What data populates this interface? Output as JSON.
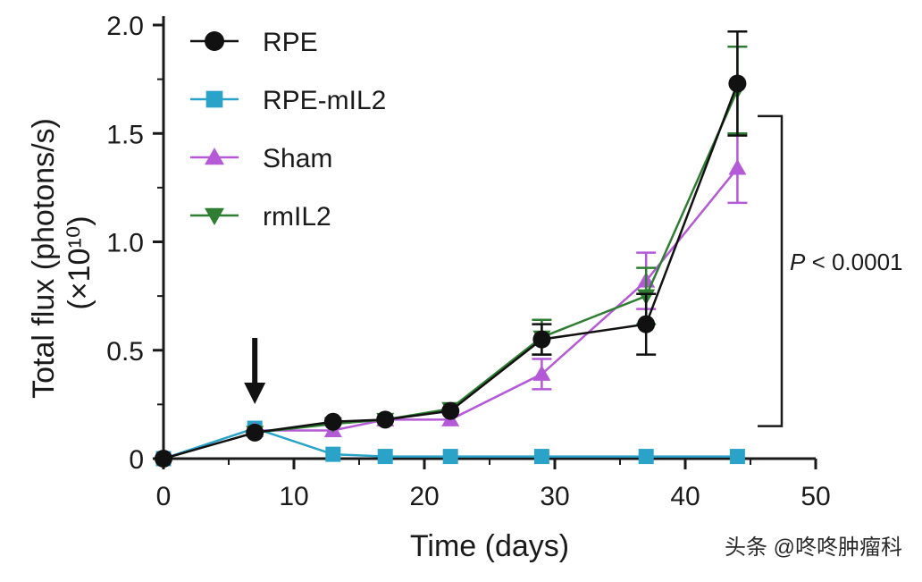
{
  "chart_data": {
    "type": "line",
    "title": "",
    "xlabel": "Time (days)",
    "ylabel_line1": "Total flux (photons/s)",
    "ylabel_line2": "(×10¹⁰)",
    "xlim": [
      0,
      50
    ],
    "ylim": [
      0,
      2.0
    ],
    "x_ticks": [
      0,
      10,
      20,
      30,
      40,
      50
    ],
    "x_tick_labels": [
      "0",
      "10",
      "20",
      "30",
      "40",
      "50"
    ],
    "y_ticks": [
      0,
      0.5,
      1.0,
      1.5,
      2.0
    ],
    "y_tick_labels": [
      "0",
      "0.5",
      "1.0",
      "1.5",
      "2.0"
    ],
    "grid": false,
    "legend_position": "top-left",
    "series": [
      {
        "name": "RPE",
        "color": "#111111",
        "marker": "circle",
        "x": [
          0,
          7,
          13,
          17,
          22,
          29,
          37,
          44
        ],
        "y": [
          0,
          0.12,
          0.17,
          0.18,
          0.22,
          0.55,
          0.62,
          1.73
        ],
        "err": [
          0,
          0,
          0,
          0,
          0,
          0.07,
          0.14,
          0.24
        ]
      },
      {
        "name": "RPE-mIL2",
        "color": "#2ba3c9",
        "marker": "square",
        "x": [
          0,
          7,
          13,
          17,
          22,
          29,
          37,
          44
        ],
        "y": [
          0,
          0.14,
          0.02,
          0.01,
          0.01,
          0.01,
          0.01,
          0.01
        ],
        "err": [
          0,
          0,
          0,
          0,
          0,
          0,
          0,
          0
        ]
      },
      {
        "name": "Sham",
        "color": "#b45ad6",
        "marker": "triangle-up",
        "x": [
          7,
          13,
          17,
          22,
          29,
          37,
          44
        ],
        "y": [
          0.13,
          0.13,
          0.18,
          0.18,
          0.39,
          0.82,
          1.34
        ],
        "err": [
          0,
          0,
          0,
          0,
          0.07,
          0.13,
          0.16
        ]
      },
      {
        "name": "rmIL2",
        "color": "#2e7d32",
        "marker": "triangle-down",
        "x": [
          7,
          13,
          17,
          22,
          29,
          37,
          44
        ],
        "y": [
          0.12,
          0.16,
          0.18,
          0.23,
          0.56,
          0.75,
          1.7
        ],
        "err": [
          0,
          0,
          0,
          0,
          0.08,
          0.13,
          0.2
        ]
      }
    ],
    "annotations": {
      "arrow_at_x": 7,
      "significance_label_italic": "P",
      "significance_label_rest": " < 0.0001",
      "bracket_y_range": [
        0.15,
        1.58
      ]
    }
  },
  "watermark": "头条 @咚咚肿瘤科"
}
